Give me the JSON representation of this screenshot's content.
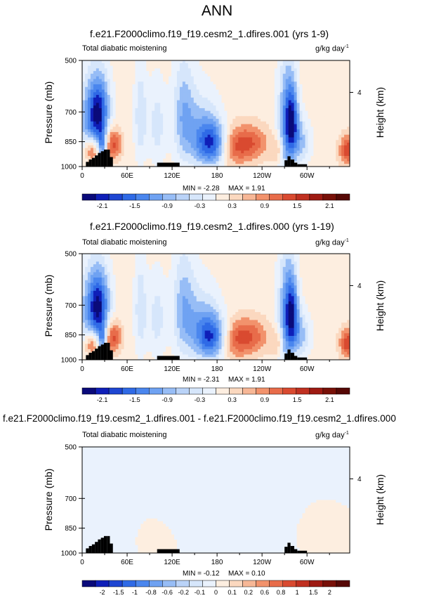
{
  "main_title": "ANN",
  "colors": {
    "scale": [
      "#0a0a7a",
      "#0f1fb8",
      "#1e46d2",
      "#2f6ae6",
      "#4a86ee",
      "#6fa2f2",
      "#97bdf6",
      "#bad3f8",
      "#d6e6fb",
      "#eaf2fd",
      "#fdeee0",
      "#fbd8bf",
      "#f7b796",
      "#f2926c",
      "#e86c4a",
      "#d94a30",
      "#c03021",
      "#9e1a12",
      "#781008",
      "#560805"
    ],
    "topography": "#000000"
  },
  "chart_data": [
    {
      "type": "heatmap",
      "title": "f.e21.F2000climo.f19_f19.cesm2_1.dfires.001 (yrs 1-9)",
      "left_label": "Total diabatic moistening",
      "right_label": "g/kg day",
      "right_label_sup": "-1",
      "ylabel": "Pressure (mb)",
      "y2label": "Height (km)",
      "y_ticks": [
        "500",
        "700",
        "850",
        "1000"
      ],
      "y2_ticks": [
        "4"
      ],
      "x_ticks": [
        "0",
        "60E",
        "120E",
        "180",
        "120W",
        "60W"
      ],
      "min_label": "MIN = -2.28",
      "max_label": "MAX = 1.91",
      "minmax": [
        -2.28,
        1.91
      ],
      "colorbar_ticks": [
        "-2.1",
        "-1.5",
        "-0.9",
        "-0.3",
        "0.3",
        "0.9",
        "1.5",
        "2.1"
      ],
      "colorbar_levels": [
        -2.1,
        -1.8,
        -1.5,
        -1.2,
        -0.9,
        -0.6,
        -0.3,
        0,
        0.3,
        0.6,
        0.9,
        1.2,
        1.5,
        1.8,
        2.1
      ]
    },
    {
      "type": "heatmap",
      "title": "f.e21.F2000climo.f19_f19.cesm2_1.dfires.000 (yrs 1-19)",
      "left_label": "Total diabatic moistening",
      "right_label": "g/kg day",
      "right_label_sup": "-1",
      "ylabel": "Pressure (mb)",
      "y2label": "Height (km)",
      "y_ticks": [
        "500",
        "700",
        "850",
        "1000"
      ],
      "y2_ticks": [
        "4"
      ],
      "x_ticks": [
        "0",
        "60E",
        "120E",
        "180",
        "120W",
        "60W"
      ],
      "min_label": "MIN = -2.31",
      "max_label": "MAX = 1.91",
      "minmax": [
        -2.31,
        1.91
      ],
      "colorbar_ticks": [
        "-2.1",
        "-1.5",
        "-0.9",
        "-0.3",
        "0.3",
        "0.9",
        "1.5",
        "2.1"
      ],
      "colorbar_levels": [
        -2.1,
        -1.8,
        -1.5,
        -1.2,
        -0.9,
        -0.6,
        -0.3,
        0,
        0.3,
        0.6,
        0.9,
        1.2,
        1.5,
        1.8,
        2.1
      ]
    },
    {
      "type": "heatmap",
      "title": "f.e21.F2000climo.f19_f19.cesm2_1.dfires.001 - f.e21.F2000climo.f19_f19.cesm2_1.dfires.000",
      "left_label": "Total diabatic moistening",
      "right_label": "g/kg day",
      "right_label_sup": "-1",
      "ylabel": "Pressure (mb)",
      "y2label": "Height (km)",
      "y_ticks": [
        "500",
        "700",
        "850",
        "1000"
      ],
      "y2_ticks": [
        "4"
      ],
      "x_ticks": [
        "0",
        "60E",
        "120E",
        "180",
        "120W",
        "60W"
      ],
      "min_label": "MIN = -0.12",
      "max_label": "MAX = 0.10",
      "minmax": [
        -0.12,
        0.1
      ],
      "colorbar_ticks": [
        "-2",
        "-1.5",
        "-1",
        "-0.8",
        "-0.6",
        "-0.2",
        "-0.1",
        "0",
        "0.1",
        "0.2",
        "0.6",
        "0.8",
        "1",
        "1.5",
        "2"
      ],
      "colorbar_levels": [
        -2,
        -1.5,
        -1,
        -0.8,
        -0.6,
        -0.2,
        -0.1,
        0,
        0.1,
        0.2,
        0.6,
        0.8,
        1,
        1.5,
        2
      ]
    }
  ]
}
